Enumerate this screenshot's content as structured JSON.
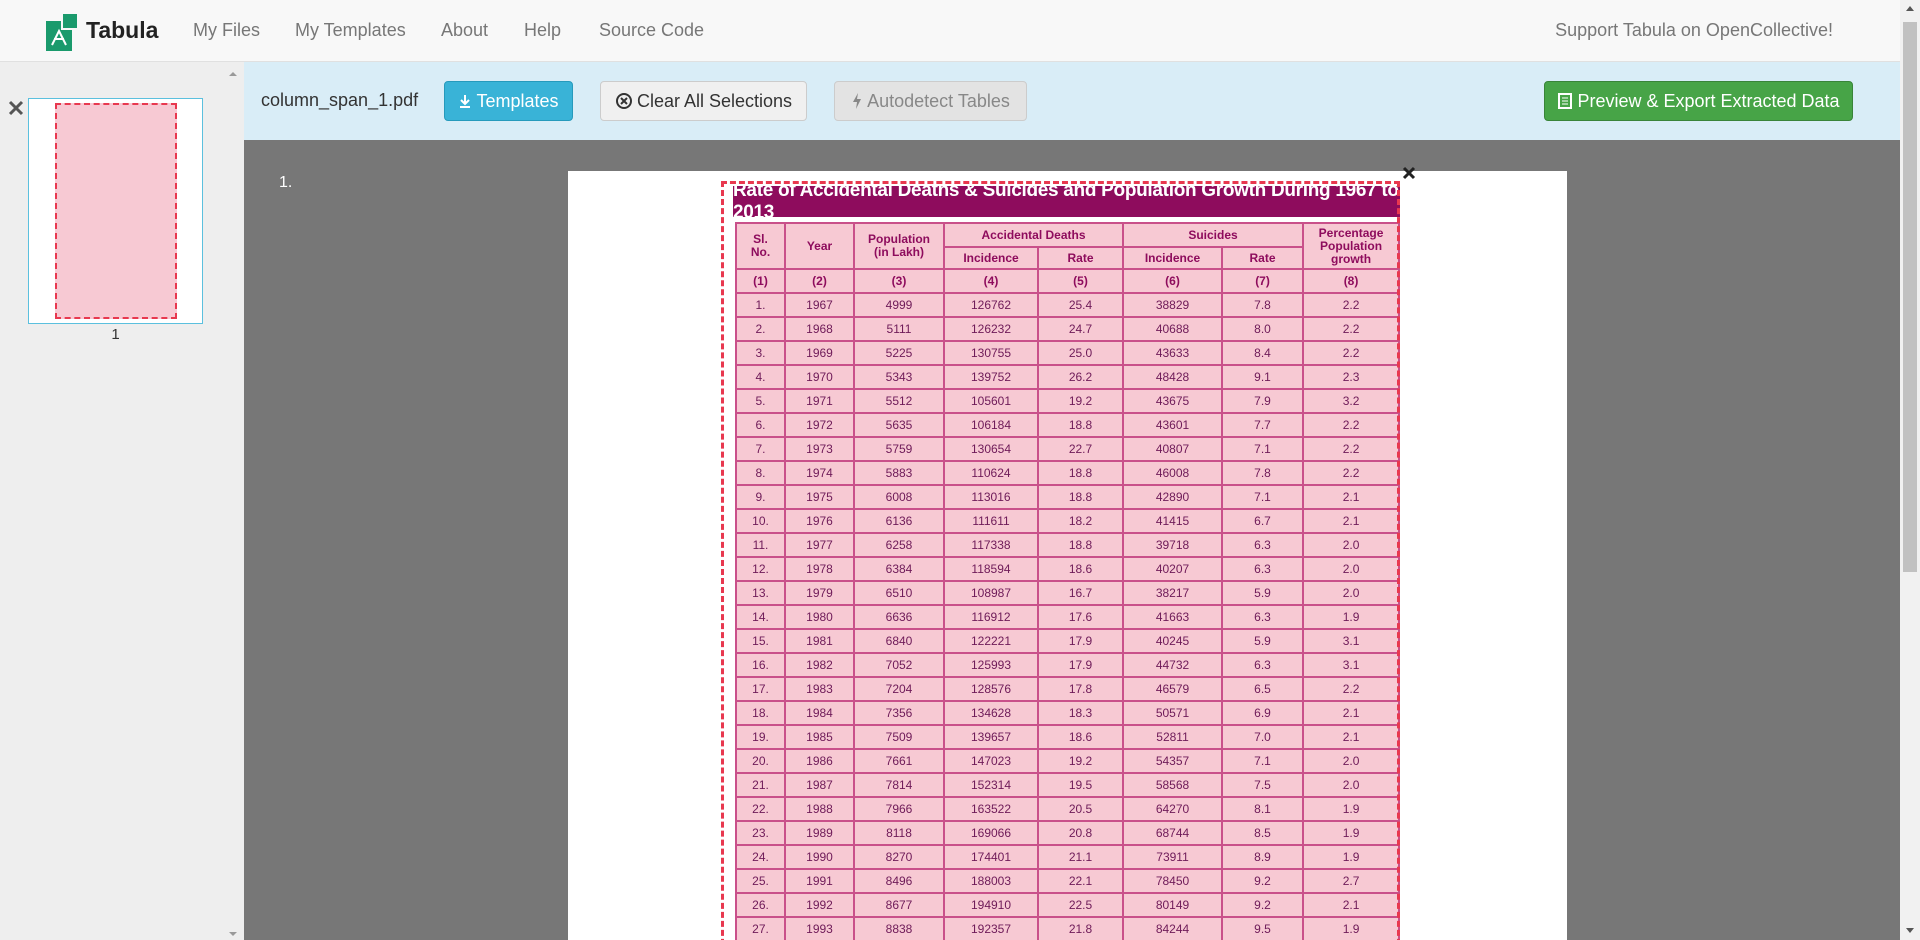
{
  "nav": {
    "brand": "Tabula",
    "links": [
      "My Files",
      "My Templates",
      "About",
      "Help",
      "Source Code"
    ],
    "support": "Support Tabula on OpenCollective!"
  },
  "toolbar": {
    "filename": "column_span_1.pdf",
    "buttons": [
      "Templates",
      "Clear All Selections",
      "Autodetect Tables",
      "Preview & Export Extracted Data"
    ]
  },
  "sidebar": {
    "thumbnail_label": "1"
  },
  "page": {
    "label": "1."
  },
  "table": {
    "title": "Rate of Accidental Deaths & Suicides and Population Growth During 1967 to 2013",
    "header": {
      "sl_no": "Sl. No.",
      "year": "Year",
      "population": "Population (in Lakh)",
      "accidental_deaths": "Accidental Deaths",
      "suicides": "Suicides",
      "percentage": "Percentage Population growth",
      "sub": [
        "Incidence",
        "Rate",
        "Incidence",
        "Rate"
      ]
    },
    "col_numbers": [
      "(1)",
      "(2)",
      "(3)",
      "(4)",
      "(5)",
      "(6)",
      "(7)",
      "(8)"
    ],
    "rows": [
      [
        "1.",
        "1967",
        "4999",
        "126762",
        "25.4",
        "38829",
        "7.8",
        "2.2"
      ],
      [
        "2.",
        "1968",
        "5111",
        "126232",
        "24.7",
        "40688",
        "8.0",
        "2.2"
      ],
      [
        "3.",
        "1969",
        "5225",
        "130755",
        "25.0",
        "43633",
        "8.4",
        "2.2"
      ],
      [
        "4.",
        "1970",
        "5343",
        "139752",
        "26.2",
        "48428",
        "9.1",
        "2.3"
      ],
      [
        "5.",
        "1971",
        "5512",
        "105601",
        "19.2",
        "43675",
        "7.9",
        "3.2"
      ],
      [
        "6.",
        "1972",
        "5635",
        "106184",
        "18.8",
        "43601",
        "7.7",
        "2.2"
      ],
      [
        "7.",
        "1973",
        "5759",
        "130654",
        "22.7",
        "40807",
        "7.1",
        "2.2"
      ],
      [
        "8.",
        "1974",
        "5883",
        "110624",
        "18.8",
        "46008",
        "7.8",
        "2.2"
      ],
      [
        "9.",
        "1975",
        "6008",
        "113016",
        "18.8",
        "42890",
        "7.1",
        "2.1"
      ],
      [
        "10.",
        "1976",
        "6136",
        "111611",
        "18.2",
        "41415",
        "6.7",
        "2.1"
      ],
      [
        "11.",
        "1977",
        "6258",
        "117338",
        "18.8",
        "39718",
        "6.3",
        "2.0"
      ],
      [
        "12.",
        "1978",
        "6384",
        "118594",
        "18.6",
        "40207",
        "6.3",
        "2.0"
      ],
      [
        "13.",
        "1979",
        "6510",
        "108987",
        "16.7",
        "38217",
        "5.9",
        "2.0"
      ],
      [
        "14.",
        "1980",
        "6636",
        "116912",
        "17.6",
        "41663",
        "6.3",
        "1.9"
      ],
      [
        "15.",
        "1981",
        "6840",
        "122221",
        "17.9",
        "40245",
        "5.9",
        "3.1"
      ],
      [
        "16.",
        "1982",
        "7052",
        "125993",
        "17.9",
        "44732",
        "6.3",
        "3.1"
      ],
      [
        "17.",
        "1983",
        "7204",
        "128576",
        "17.8",
        "46579",
        "6.5",
        "2.2"
      ],
      [
        "18.",
        "1984",
        "7356",
        "134628",
        "18.3",
        "50571",
        "6.9",
        "2.1"
      ],
      [
        "19.",
        "1985",
        "7509",
        "139657",
        "18.6",
        "52811",
        "7.0",
        "2.1"
      ],
      [
        "20.",
        "1986",
        "7661",
        "147023",
        "19.2",
        "54357",
        "7.1",
        "2.0"
      ],
      [
        "21.",
        "1987",
        "7814",
        "152314",
        "19.5",
        "58568",
        "7.5",
        "2.0"
      ],
      [
        "22.",
        "1988",
        "7966",
        "163522",
        "20.5",
        "64270",
        "8.1",
        "1.9"
      ],
      [
        "23.",
        "1989",
        "8118",
        "169066",
        "20.8",
        "68744",
        "8.5",
        "1.9"
      ],
      [
        "24.",
        "1990",
        "8270",
        "174401",
        "21.1",
        "73911",
        "8.9",
        "1.9"
      ],
      [
        "25.",
        "1991",
        "8496",
        "188003",
        "22.1",
        "78450",
        "9.2",
        "2.7"
      ],
      [
        "26.",
        "1992",
        "8677",
        "194910",
        "22.5",
        "80149",
        "9.2",
        "2.1"
      ],
      [
        "27.",
        "1993",
        "8838",
        "192357",
        "21.8",
        "84244",
        "9.5",
        "1.9"
      ]
    ]
  }
}
